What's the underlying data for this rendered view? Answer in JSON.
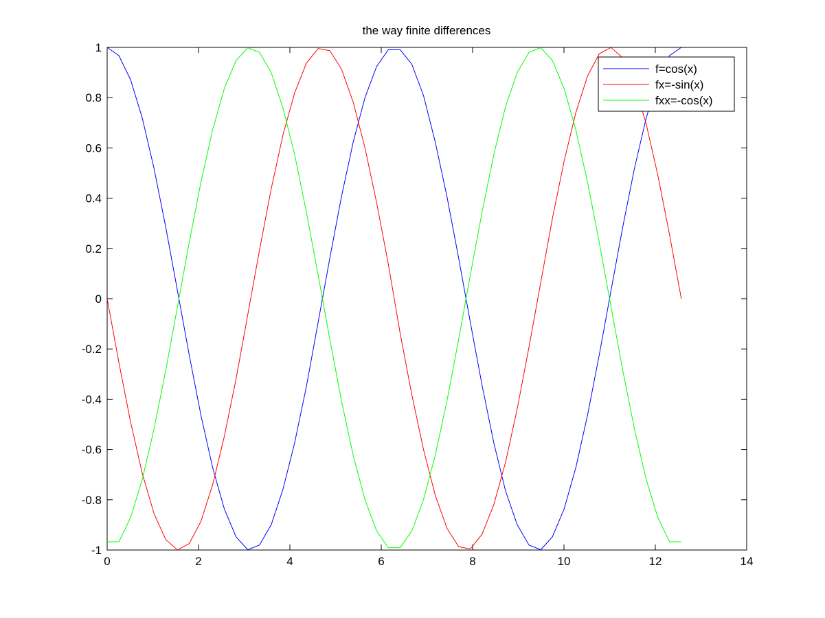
{
  "chart_data": {
    "type": "line",
    "title": "the way finite differences",
    "xlabel": "",
    "ylabel": "",
    "xlim": [
      0,
      14
    ],
    "ylim": [
      -1,
      1
    ],
    "xticks": [
      0,
      2,
      4,
      6,
      8,
      10,
      12,
      14
    ],
    "yticks": [
      -1,
      -0.8,
      -0.6,
      -0.4,
      -0.2,
      0,
      0.2,
      0.4,
      0.6,
      0.8,
      1
    ],
    "grid": false,
    "legend_position": "top-right",
    "x": [
      0,
      0.2565,
      0.513,
      0.7695,
      1.026,
      1.2825,
      1.539,
      1.7955,
      2.052,
      2.3085,
      2.565,
      2.8215,
      3.078,
      3.3345,
      3.591,
      3.8475,
      4.104,
      4.3605,
      4.617,
      4.8735,
      5.13,
      5.3865,
      5.643,
      5.8995,
      6.156,
      6.4125,
      6.669,
      6.9255,
      7.182,
      7.4385,
      7.695,
      7.9515,
      8.208,
      8.4645,
      8.721,
      8.9775,
      9.234,
      9.4905,
      9.747,
      10.0035,
      10.26,
      10.5165,
      10.773,
      11.0295,
      11.286,
      11.5425,
      11.799,
      12.0555,
      12.312,
      12.5685
    ],
    "series": [
      {
        "name": "f=cos(x)",
        "color": "#0000ff",
        "values": [
          1.0,
          0.9673,
          0.8713,
          0.7181,
          0.5183,
          0.2845,
          0.0318,
          -0.2232,
          -0.4632,
          -0.6718,
          -0.8365,
          -0.9476,
          -0.999,
          -0.9802,
          -0.8996,
          -0.7591,
          -0.5738,
          -0.3503,
          -0.0953,
          0.1608,
          0.4067,
          0.6235,
          0.7995,
          0.9243,
          0.9907,
          0.9907,
          0.9331,
          0.8081,
          0.6235,
          0.4067,
          0.1608,
          -0.0953,
          -0.3455,
          -0.5738,
          -0.7651,
          -0.8996,
          -0.9802,
          -0.999,
          -0.9476,
          -0.8365,
          -0.6718,
          -0.4632,
          -0.2232,
          0.0318,
          0.2845,
          0.5183,
          0.7181,
          0.8713,
          0.9673,
          1.0
        ]
      },
      {
        "name": "fx=-sin(x)",
        "color": "#ff0000",
        "values": [
          0.0,
          -0.2537,
          -0.4907,
          -0.6959,
          -0.8551,
          -0.9587,
          -0.9995,
          -0.9747,
          -0.8863,
          -0.7406,
          -0.5477,
          -0.3193,
          -0.0637,
          0.1929,
          0.4369,
          0.6509,
          0.8191,
          0.9367,
          0.9955,
          0.987,
          0.9135,
          0.7819,
          0.6006,
          0.3817,
          0.1364,
          -0.1364,
          -0.3817,
          -0.6006,
          -0.7819,
          -0.9135,
          -0.987,
          -0.9955,
          -0.9367,
          -0.8191,
          -0.6509,
          -0.4369,
          -0.1929,
          0.0637,
          0.3193,
          0.5477,
          0.7406,
          0.8863,
          0.9747,
          0.9995,
          0.9587,
          0.8551,
          0.6959,
          0.4907,
          0.2537,
          0.0
        ]
      },
      {
        "name": "fxx=-cos(x)",
        "color": "#00ff00",
        "values": [
          -0.9673,
          -0.9673,
          -0.8713,
          -0.7181,
          -0.5183,
          -0.2845,
          -0.0318,
          0.2232,
          0.4632,
          0.6718,
          0.8365,
          0.9476,
          0.999,
          0.9802,
          0.8996,
          0.7591,
          0.5738,
          0.3455,
          0.0953,
          -0.1608,
          -0.4067,
          -0.6235,
          -0.7995,
          -0.9243,
          -0.9907,
          -0.9907,
          -0.9243,
          -0.7995,
          -0.6235,
          -0.4067,
          -0.1608,
          0.0953,
          0.3455,
          0.5738,
          0.7651,
          0.8996,
          0.9802,
          0.999,
          0.9476,
          0.8365,
          0.6718,
          0.4632,
          0.2232,
          -0.0318,
          -0.2845,
          -0.5183,
          -0.7181,
          -0.8713,
          -0.9673,
          -0.9673
        ]
      }
    ]
  }
}
